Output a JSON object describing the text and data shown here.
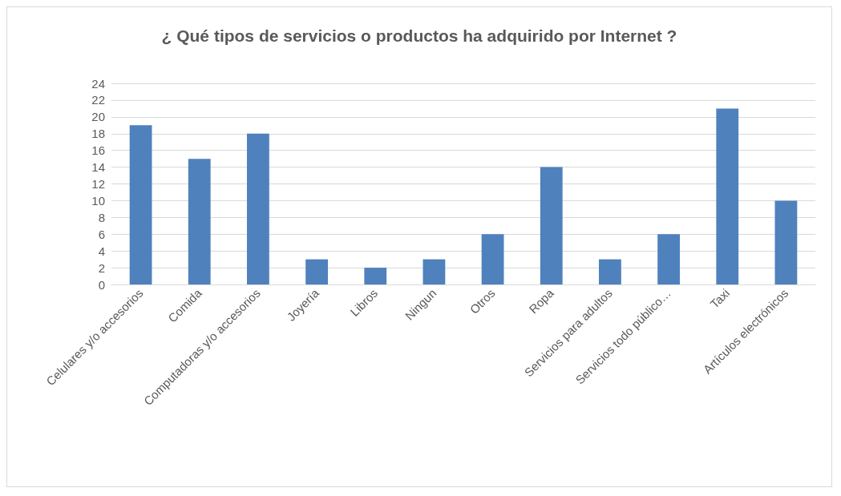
{
  "chart_data": {
    "type": "bar",
    "title": "¿ Qué tipos de servicios o productos ha adquirido por Internet ?",
    "categories": [
      "Celulares y/o accesorios",
      "Comida",
      "Computadoras y/o accesorios",
      "Joyería",
      "Libros",
      "Ningun",
      "Otros",
      "Ropa",
      "Servicios para adultos",
      "Servicios todo público…",
      "Taxi",
      "Artículos electrónicos"
    ],
    "values": [
      19,
      15,
      18,
      3,
      2,
      3,
      6,
      14,
      3,
      6,
      21,
      10
    ],
    "color": "#4f81bd",
    "ylim": [
      0,
      24
    ],
    "yticks": [
      0,
      2,
      4,
      6,
      8,
      10,
      12,
      14,
      16,
      18,
      20,
      22,
      24
    ],
    "grid": "y"
  }
}
